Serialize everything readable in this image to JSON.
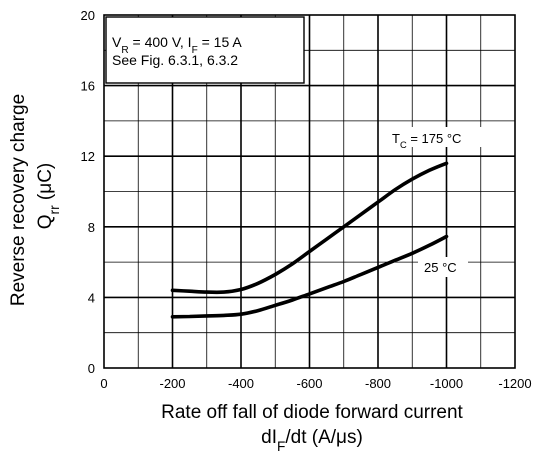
{
  "chart_data": {
    "type": "line",
    "xlabel_line1": "Rate off fall of diode forward current",
    "xlabel_line2": {
      "pre": "dI",
      "sub": "F",
      "post": "/dt  (A/μs)"
    },
    "ylabel_line1": "Reverse recovery charge",
    "ylabel_line2": {
      "pre": "Q",
      "sub": "rr",
      "post": "  (μC)"
    },
    "xlim": [
      0,
      -1200
    ],
    "ylim": [
      0,
      20
    ],
    "x_ticks": [
      0,
      -200,
      -400,
      -600,
      -800,
      -1000,
      -1200
    ],
    "x_tick_labels": [
      "0",
      "-200",
      "-400",
      "-600",
      "-800",
      "-1000",
      "-1200"
    ],
    "y_ticks": [
      0,
      4,
      8,
      12,
      16,
      20
    ],
    "y_tick_labels": [
      "0",
      "4",
      "8",
      "12",
      "16",
      "20"
    ],
    "grid": true,
    "note": {
      "line1": [
        {
          "t": "V"
        },
        {
          "t": "R",
          "sub": true
        },
        {
          "t": " = 400 V, I"
        },
        {
          "t": "F",
          "sub": true
        },
        {
          "t": " = 15 A"
        }
      ],
      "line2": "See Fig. 6.3.1, 6.3.2"
    },
    "series": [
      {
        "label": [
          {
            "t": "T"
          },
          {
            "t": "C",
            "sub": true
          },
          {
            "t": "  = 175 °C"
          }
        ],
        "x": [
          -200,
          -250,
          -300,
          -350,
          -400,
          -450,
          -500,
          -550,
          -600,
          -650,
          -700,
          -750,
          -800,
          -850,
          -900,
          -950,
          -1000
        ],
        "y": [
          4.4,
          4.35,
          4.3,
          4.3,
          4.45,
          4.8,
          5.3,
          5.9,
          6.6,
          7.3,
          8.0,
          8.7,
          9.4,
          10.1,
          10.7,
          11.2,
          11.6
        ]
      },
      {
        "label": [
          {
            "t": "25 °C"
          }
        ],
        "x": [
          -200,
          -250,
          -300,
          -350,
          -400,
          -450,
          -500,
          -550,
          -600,
          -650,
          -700,
          -750,
          -800,
          -850,
          -900,
          -950,
          -1000
        ],
        "y": [
          2.9,
          2.92,
          2.95,
          2.98,
          3.05,
          3.25,
          3.55,
          3.85,
          4.2,
          4.55,
          4.9,
          5.3,
          5.7,
          6.1,
          6.5,
          6.95,
          7.45
        ]
      }
    ]
  }
}
